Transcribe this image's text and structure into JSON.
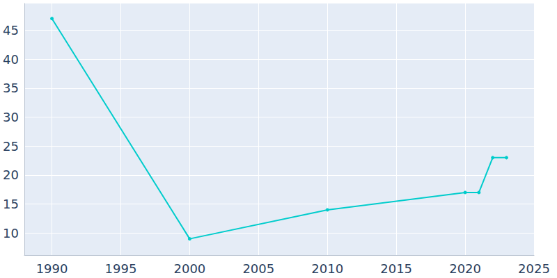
{
  "chart_data": {
    "type": "line",
    "x": [
      1990,
      2000,
      2010,
      2020,
      2021,
      2022,
      2023
    ],
    "values": [
      47,
      9,
      14,
      17,
      17,
      23,
      23
    ],
    "color": "#00cccc",
    "marker": "circle",
    "xlim": [
      1988,
      2025
    ],
    "xticks": [
      1990,
      1995,
      2000,
      2005,
      2010,
      2015,
      2020,
      2025
    ],
    "ylim": [
      6.2,
      49.6
    ],
    "yticks": [
      10,
      15,
      20,
      25,
      30,
      35,
      40,
      45
    ],
    "grid": true
  }
}
